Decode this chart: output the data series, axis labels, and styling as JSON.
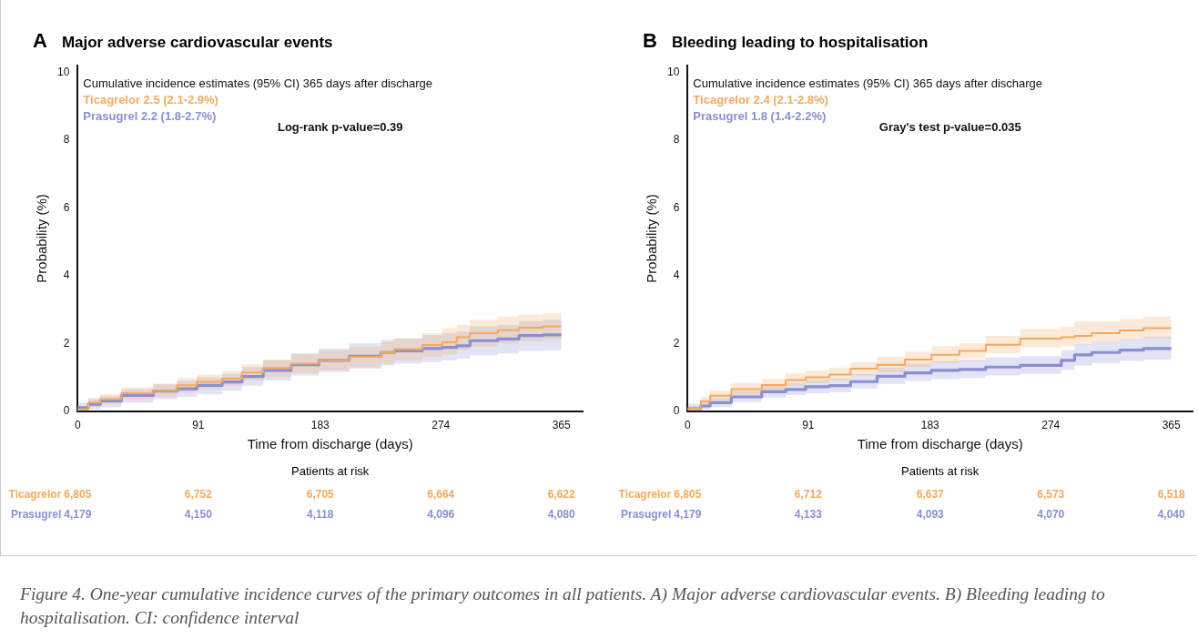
{
  "chart_data": [
    {
      "type": "step",
      "title": "Major adverse cardiovascular events",
      "xlabel": "Time from discharge (days)",
      "ylabel": "Probability (%)",
      "x": [
        0,
        8,
        17,
        33,
        57,
        75,
        90,
        109,
        124,
        140,
        161,
        182,
        205,
        229,
        239,
        260,
        275,
        286,
        296,
        317,
        333,
        351,
        365
      ],
      "series": [
        {
          "name": "Ticagrelor",
          "color": "#f5a95e",
          "values": [
            0,
            0.05,
            0.25,
            0.35,
            0.53,
            0.6,
            0.76,
            0.86,
            0.96,
            1.14,
            1.27,
            1.4,
            1.5,
            1.6,
            1.73,
            1.83,
            1.95,
            2.03,
            2.18,
            2.3,
            2.39,
            2.46,
            2.5
          ],
          "lower": [
            0,
            0,
            0.12,
            0.2,
            0.35,
            0.42,
            0.55,
            0.65,
            0.75,
            0.9,
            1.0,
            1.12,
            1.2,
            1.3,
            1.4,
            1.5,
            1.6,
            1.67,
            1.8,
            1.9,
            2.0,
            2.07,
            2.1
          ],
          "upper": [
            0,
            0.15,
            0.4,
            0.5,
            0.7,
            0.8,
            0.98,
            1.08,
            1.18,
            1.38,
            1.52,
            1.68,
            1.8,
            1.9,
            2.05,
            2.15,
            2.3,
            2.45,
            2.55,
            2.7,
            2.8,
            2.85,
            2.9
          ]
        },
        {
          "name": "Prasugrel",
          "color": "#8a8fd2",
          "values": [
            0,
            0.1,
            0.2,
            0.3,
            0.46,
            0.59,
            0.66,
            0.76,
            0.86,
            1.02,
            1.2,
            1.37,
            1.5,
            1.62,
            1.73,
            1.78,
            1.85,
            1.88,
            1.93,
            2.08,
            2.13,
            2.23,
            2.25
          ],
          "lower": [
            0,
            0,
            0.05,
            0.12,
            0.25,
            0.35,
            0.42,
            0.5,
            0.6,
            0.75,
            0.9,
            1.05,
            1.15,
            1.25,
            1.35,
            1.4,
            1.45,
            1.5,
            1.55,
            1.65,
            1.7,
            1.78,
            1.8
          ],
          "upper": [
            0,
            0.25,
            0.35,
            0.45,
            0.65,
            0.8,
            0.9,
            1.0,
            1.1,
            1.3,
            1.5,
            1.7,
            1.85,
            2.0,
            2.1,
            2.15,
            2.25,
            2.3,
            2.35,
            2.5,
            2.55,
            2.65,
            2.7
          ]
        }
      ],
      "xlim": [
        0,
        381
      ],
      "xticks": [
        0,
        91,
        183,
        274,
        365
      ],
      "ylim": [
        0,
        10.2
      ],
      "yticks": [
        0,
        2,
        4,
        6,
        8,
        10
      ],
      "grid": false,
      "legend": false,
      "annotations": [
        "A",
        "Cumulative incidence estimates (95% CI) 365 days after discharge",
        "Ticagrelor 2.5 (2.1-2.9%)",
        "Prasugrel 2.2 (1.8-2.7%)",
        "Log-rank p-value=0.39",
        "Patients at risk",
        "6,805",
        "6,752",
        "6,705",
        "6,664",
        "6,622",
        "4,179",
        "4,150",
        "4,118",
        "4,096",
        "4,080"
      ]
    },
    {
      "type": "step",
      "title": "Bleeding leading to hospitalisation",
      "xlabel": "Time from discharge (days)",
      "ylabel": "Probability (%)",
      "x": [
        0,
        10,
        17,
        33,
        56,
        74,
        89,
        107,
        123,
        143,
        164,
        184,
        205,
        225,
        251,
        282,
        292,
        305,
        326,
        344,
        365
      ],
      "series": [
        {
          "name": "Ticagrelor",
          "color": "#f5a95e",
          "values": [
            0.05,
            0.07,
            0.29,
            0.45,
            0.65,
            0.77,
            0.92,
            1.0,
            1.08,
            1.25,
            1.37,
            1.52,
            1.66,
            1.78,
            1.96,
            2.14,
            2.18,
            2.22,
            2.3,
            2.38,
            2.45
          ],
          "lower": [
            0,
            0,
            0.15,
            0.3,
            0.48,
            0.6,
            0.74,
            0.82,
            0.9,
            1.05,
            1.15,
            1.3,
            1.42,
            1.55,
            1.7,
            1.88,
            1.92,
            1.97,
            2.05,
            2.1,
            2.15
          ],
          "upper": [
            0.1,
            0.15,
            0.42,
            0.6,
            0.82,
            0.95,
            1.12,
            1.2,
            1.28,
            1.45,
            1.6,
            1.75,
            1.92,
            2.0,
            2.22,
            2.42,
            2.48,
            2.65,
            2.65,
            2.72,
            2.8
          ]
        },
        {
          "name": "Prasugrel",
          "color": "#8a8fd2",
          "values": [
            0,
            0.07,
            0.15,
            0.25,
            0.42,
            0.57,
            0.64,
            0.72,
            0.75,
            0.87,
            1.03,
            1.13,
            1.2,
            1.23,
            1.3,
            1.35,
            1.5,
            1.66,
            1.73,
            1.8,
            1.85
          ],
          "lower": [
            0,
            0,
            0.05,
            0.12,
            0.27,
            0.4,
            0.47,
            0.53,
            0.56,
            0.67,
            0.8,
            0.88,
            0.95,
            0.98,
            1.05,
            1.1,
            1.22,
            1.35,
            1.42,
            1.48,
            1.52
          ],
          "upper": [
            0,
            0.22,
            0.28,
            0.4,
            0.6,
            0.75,
            0.83,
            0.92,
            0.96,
            1.1,
            1.28,
            1.4,
            1.48,
            1.52,
            1.58,
            1.62,
            1.8,
            1.98,
            2.05,
            2.12,
            2.2
          ]
        }
      ],
      "xlim": [
        0,
        381
      ],
      "xticks": [
        0,
        91,
        183,
        274,
        365
      ],
      "ylim": [
        0,
        10.2
      ],
      "yticks": [
        0,
        2,
        4,
        6,
        8,
        10
      ],
      "grid": false,
      "legend": false,
      "annotations": [
        "B",
        "Cumulative incidence estimates (95% CI) 365 days after discharge",
        "Ticagrelor 2.4 (2.1-2.8%)",
        "Prasugrel 1.8 (1.4-2.2%)",
        "Gray's test p-value=0.035",
        "Patients at risk",
        "6,805",
        "6,712",
        "6,637",
        "6,573",
        "6,518",
        "4,179",
        "4,133",
        "4,093",
        "4,070",
        "4,040",
        "Figure 4. One-year cumulative incidence curves of the primary outcomes in all patients. A) Major adverse cardiovascular events. B) Bleeding leading to hospitalisation. CI: confidence interval"
      ]
    }
  ]
}
